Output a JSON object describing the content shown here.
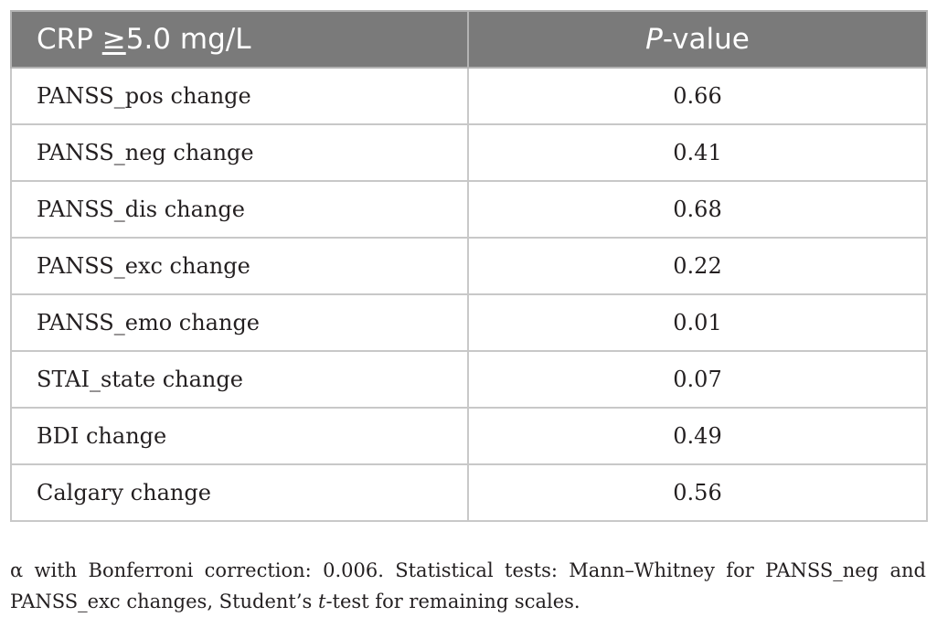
{
  "table": {
    "header": {
      "col1_prefix": "CRP ",
      "col1_symbol": "≥",
      "col1_suffix": "5.0 mg/L",
      "col2_italic": "P",
      "col2_rest": "-value"
    },
    "rows": [
      {
        "label": "PANSS_pos change",
        "value": "0.66"
      },
      {
        "label": "PANSS_neg change",
        "value": "0.41"
      },
      {
        "label": "PANSS_dis change",
        "value": "0.68"
      },
      {
        "label": "PANSS_exc change",
        "value": "0.22"
      },
      {
        "label": "PANSS_emo change",
        "value": "0.01"
      },
      {
        "label": "STAI_state change",
        "value": "0.07"
      },
      {
        "label": "BDI change",
        "value": "0.49"
      },
      {
        "label": "Calgary change",
        "value": "0.56"
      }
    ]
  },
  "footnote": {
    "part1": "α with Bonferroni correction: 0.006. Statistical tests: Mann–Whitney for PANSS_neg and PANSS_exc changes, Student’s ",
    "italic": "t",
    "part2": "-test for remaining scales."
  },
  "colors": {
    "header_bg": "#7a7a7a",
    "header_text": "#ffffff",
    "border": "#c8c8c8",
    "text": "#231f20"
  }
}
